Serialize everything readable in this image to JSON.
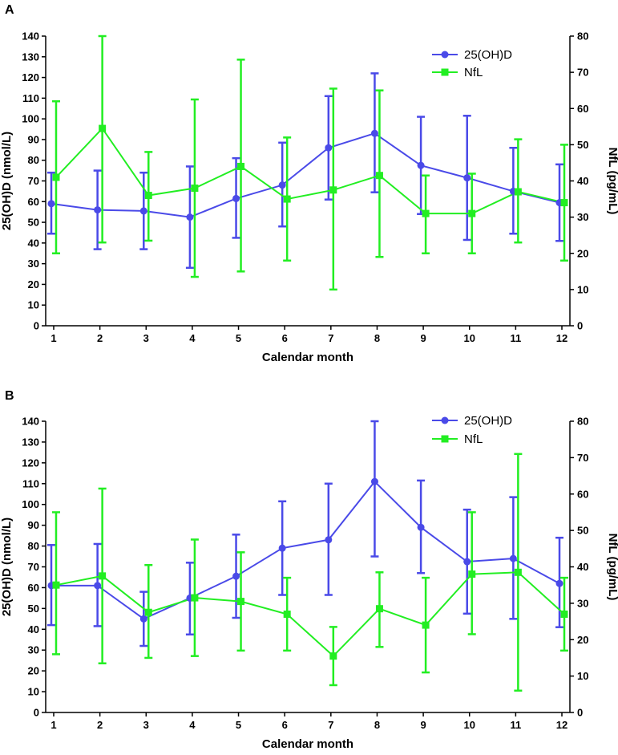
{
  "colors": {
    "vitd": "#4a4ae8",
    "nfl": "#22ee22",
    "axis": "#000000"
  },
  "chart_data": [
    {
      "type": "line",
      "panel_label": "A",
      "xlabel": "Calendar month",
      "ylabel": "25(OH)D (nmol/L)",
      "y2label": "NfL (pg/mL)",
      "categories": [
        "1",
        "2",
        "3",
        "4",
        "5",
        "6",
        "7",
        "8",
        "9",
        "10",
        "11",
        "12"
      ],
      "ylim": [
        0,
        140
      ],
      "yticks": [
        "0",
        "10",
        "20",
        "30",
        "40",
        "50",
        "60",
        "70",
        "80",
        "90",
        "100",
        "110",
        "120",
        "130",
        "140"
      ],
      "y2lim": [
        0,
        80
      ],
      "y2ticks": [
        "0",
        "10",
        "20",
        "30",
        "40",
        "50",
        "60",
        "70",
        "80"
      ],
      "legend_position": "top-right",
      "series": [
        {
          "name": "25(OH)D",
          "axis": "left",
          "marker": "circle",
          "values": [
            59,
            56,
            55.5,
            52.5,
            61.5,
            68,
            86,
            93,
            77.5,
            71.5,
            65,
            59.5
          ],
          "err_low": [
            44.5,
            37,
            37,
            28,
            42.5,
            48,
            61,
            64.5,
            54,
            41.5,
            44.5,
            41
          ],
          "err_high": [
            74,
            75,
            74,
            77,
            81,
            88.5,
            111,
            122,
            101,
            101.5,
            86,
            78
          ]
        },
        {
          "name": "NfL",
          "axis": "right",
          "marker": "square",
          "values": [
            41,
            54.5,
            36,
            38,
            44,
            35,
            37.5,
            41.5,
            31,
            31,
            37,
            34
          ],
          "err_low": [
            20,
            23,
            23.5,
            13.5,
            15,
            18,
            10,
            19,
            20,
            20,
            23,
            18
          ],
          "err_high": [
            62,
            80,
            48,
            62.5,
            73.5,
            52,
            65.5,
            65,
            41.5,
            42,
            51.5,
            50
          ]
        }
      ]
    },
    {
      "type": "line",
      "panel_label": "B",
      "xlabel": "Calendar month",
      "ylabel": "25(OH)D (nmol/L)",
      "y2label": "NfL (pg/mL)",
      "categories": [
        "1",
        "2",
        "3",
        "4",
        "5",
        "6",
        "7",
        "8",
        "9",
        "10",
        "11",
        "12"
      ],
      "ylim": [
        0,
        140
      ],
      "yticks": [
        "0",
        "10",
        "20",
        "30",
        "40",
        "50",
        "60",
        "70",
        "80",
        "90",
        "100",
        "110",
        "120",
        "130",
        "140"
      ],
      "y2lim": [
        0,
        80
      ],
      "y2ticks": [
        "0",
        "10",
        "20",
        "30",
        "40",
        "50",
        "60",
        "70",
        "80"
      ],
      "legend_position": "top-right",
      "series": [
        {
          "name": "25(OH)D",
          "axis": "left",
          "marker": "circle",
          "values": [
            61,
            61,
            45,
            55,
            65.5,
            79,
            83,
            111,
            89,
            72.5,
            74,
            62
          ],
          "err_low": [
            42,
            41.5,
            32,
            37.5,
            45.5,
            56.5,
            56.5,
            75,
            67,
            47.5,
            45,
            41
          ],
          "err_high": [
            80.5,
            81,
            58,
            72,
            85.5,
            101.5,
            110,
            140,
            111.5,
            97.5,
            103.5,
            84
          ]
        },
        {
          "name": "NfL",
          "axis": "right",
          "marker": "square",
          "values": [
            35,
            37.5,
            27.5,
            31.5,
            30.5,
            27,
            15.5,
            28.5,
            24,
            38,
            38.5,
            27
          ],
          "err_low": [
            16,
            13.5,
            15,
            15.5,
            17,
            17,
            7.5,
            18,
            11,
            21.5,
            6,
            17
          ],
          "err_high": [
            55,
            61.5,
            40.5,
            47.5,
            44,
            37,
            23.5,
            38.5,
            37,
            55,
            71,
            37
          ]
        }
      ]
    }
  ]
}
